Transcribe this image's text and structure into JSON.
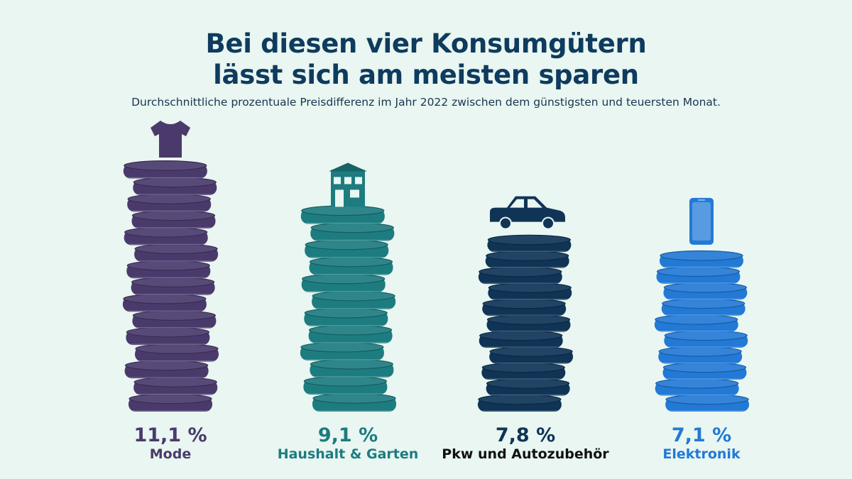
{
  "chart_data": {
    "type": "bar",
    "title": [
      "Bei diesen vier Konsumgütern",
      "lässt sich am meisten sparen"
    ],
    "subtitle": "Durchschnittliche prozentuale Preisdifferenz im Jahr 2022 zwischen dem günstigsten und teuersten Monat.",
    "categories": [
      "Mode",
      "Haushalt & Garten",
      "Pkw und Autozubehör",
      "Elektronik"
    ],
    "values": [
      11.1,
      9.1,
      7.8,
      7.1
    ],
    "value_labels": [
      "11,1 %",
      "9,1 %",
      "7,8 %",
      "7,1 %"
    ],
    "colors": [
      "#4a3a6c",
      "#1d7c80",
      "#0f3456",
      "#2279d6"
    ],
    "icons": [
      "tshirt-icon",
      "house-icon",
      "car-icon",
      "smartphone-icon"
    ],
    "grid": false,
    "legend": "none"
  },
  "background": "#e9f6f1"
}
